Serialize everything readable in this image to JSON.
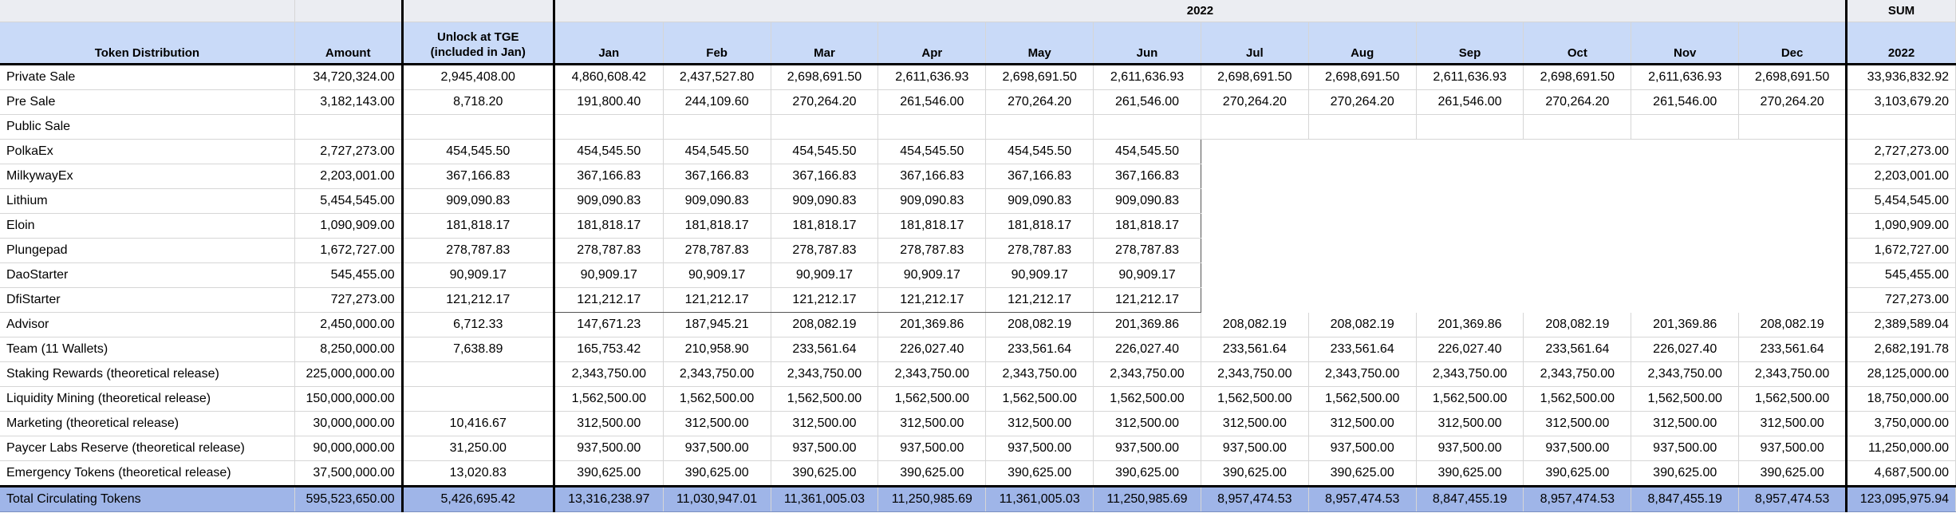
{
  "header": {
    "year_group": "2022",
    "sum_group": "SUM",
    "columns": [
      "Token Distribution",
      "Amount",
      "Unlock at TGE (included in Jan)",
      "Jan",
      "Feb",
      "Mar",
      "Apr",
      "May",
      "Jun",
      "Jul",
      "Aug",
      "Sep",
      "Oct",
      "Nov",
      "Dec",
      "2022"
    ]
  },
  "rows": [
    {
      "label": "Private Sale",
      "amount": "34,720,324.00",
      "tge": "2,945,408.00",
      "months": [
        "4,860,608.42",
        "2,437,527.80",
        "2,698,691.50",
        "2,611,636.93",
        "2,698,691.50",
        "2,611,636.93",
        "2,698,691.50",
        "2,698,691.50",
        "2,611,636.93",
        "2,698,691.50",
        "2,611,636.93",
        "2,698,691.50"
      ],
      "sum": "33,936,832.92"
    },
    {
      "label": "Pre Sale",
      "amount": "3,182,143.00",
      "tge": "8,718.20",
      "months": [
        "191,800.40",
        "244,109.60",
        "270,264.20",
        "261,546.00",
        "270,264.20",
        "261,546.00",
        "270,264.20",
        "270,264.20",
        "261,546.00",
        "270,264.20",
        "261,546.00",
        "270,264.20"
      ],
      "sum": "3,103,679.20"
    },
    {
      "label": "Public Sale",
      "amount": "",
      "tge": "",
      "months": [
        "",
        "",
        "",
        "",
        "",
        "",
        "",
        "",
        "",
        "",
        "",
        ""
      ],
      "sum": ""
    },
    {
      "label": "PolkaEx",
      "amount": "2,727,273.00",
      "tge": "454,545.50",
      "months": [
        "454,545.50",
        "454,545.50",
        "454,545.50",
        "454,545.50",
        "454,545.50",
        "454,545.50",
        "",
        "",
        "",
        "",
        "",
        ""
      ],
      "sum": "2,727,273.00"
    },
    {
      "label": "MilkywayEx",
      "amount": "2,203,001.00",
      "tge": "367,166.83",
      "months": [
        "367,166.83",
        "367,166.83",
        "367,166.83",
        "367,166.83",
        "367,166.83",
        "367,166.83",
        "",
        "",
        "",
        "",
        "",
        ""
      ],
      "sum": "2,203,001.00"
    },
    {
      "label": "Lithium",
      "amount": "5,454,545.00",
      "tge": "909,090.83",
      "months": [
        "909,090.83",
        "909,090.83",
        "909,090.83",
        "909,090.83",
        "909,090.83",
        "909,090.83",
        "",
        "",
        "",
        "",
        "",
        ""
      ],
      "sum": "5,454,545.00"
    },
    {
      "label": "Eloin",
      "amount": "1,090,909.00",
      "tge": "181,818.17",
      "months": [
        "181,818.17",
        "181,818.17",
        "181,818.17",
        "181,818.17",
        "181,818.17",
        "181,818.17",
        "",
        "",
        "",
        "",
        "",
        ""
      ],
      "sum": "1,090,909.00"
    },
    {
      "label": "Plungepad",
      "amount": "1,672,727.00",
      "tge": "278,787.83",
      "months": [
        "278,787.83",
        "278,787.83",
        "278,787.83",
        "278,787.83",
        "278,787.83",
        "278,787.83",
        "",
        "",
        "",
        "",
        "",
        ""
      ],
      "sum": "1,672,727.00"
    },
    {
      "label": "DaoStarter",
      "amount": "545,455.00",
      "tge": "90,909.17",
      "months": [
        "90,909.17",
        "90,909.17",
        "90,909.17",
        "90,909.17",
        "90,909.17",
        "90,909.17",
        "",
        "",
        "",
        "",
        "",
        ""
      ],
      "sum": "545,455.00"
    },
    {
      "label": "DfiStarter",
      "amount": "727,273.00",
      "tge": "121,212.17",
      "months": [
        "121,212.17",
        "121,212.17",
        "121,212.17",
        "121,212.17",
        "121,212.17",
        "121,212.17",
        "",
        "",
        "",
        "",
        "",
        ""
      ],
      "sum": "727,273.00"
    },
    {
      "label": "Advisor",
      "amount": "2,450,000.00",
      "tge": "6,712.33",
      "months": [
        "147,671.23",
        "187,945.21",
        "208,082.19",
        "201,369.86",
        "208,082.19",
        "201,369.86",
        "208,082.19",
        "208,082.19",
        "201,369.86",
        "208,082.19",
        "201,369.86",
        "208,082.19"
      ],
      "sum": "2,389,589.04"
    },
    {
      "label": "Team (11 Wallets)",
      "amount": "8,250,000.00",
      "tge": "7,638.89",
      "months": [
        "165,753.42",
        "210,958.90",
        "233,561.64",
        "226,027.40",
        "233,561.64",
        "226,027.40",
        "233,561.64",
        "233,561.64",
        "226,027.40",
        "233,561.64",
        "226,027.40",
        "233,561.64"
      ],
      "sum": "2,682,191.78"
    },
    {
      "label": "Staking Rewards (theoretical release)",
      "amount": "225,000,000.00",
      "tge": "",
      "months": [
        "2,343,750.00",
        "2,343,750.00",
        "2,343,750.00",
        "2,343,750.00",
        "2,343,750.00",
        "2,343,750.00",
        "2,343,750.00",
        "2,343,750.00",
        "2,343,750.00",
        "2,343,750.00",
        "2,343,750.00",
        "2,343,750.00"
      ],
      "sum": "28,125,000.00"
    },
    {
      "label": "Liquidity Mining (theoretical release)",
      "amount": "150,000,000.00",
      "tge": "",
      "months": [
        "1,562,500.00",
        "1,562,500.00",
        "1,562,500.00",
        "1,562,500.00",
        "1,562,500.00",
        "1,562,500.00",
        "1,562,500.00",
        "1,562,500.00",
        "1,562,500.00",
        "1,562,500.00",
        "1,562,500.00",
        "1,562,500.00"
      ],
      "sum": "18,750,000.00"
    },
    {
      "label": "Marketing (theoretical release)",
      "amount": "30,000,000.00",
      "tge": "10,416.67",
      "months": [
        "312,500.00",
        "312,500.00",
        "312,500.00",
        "312,500.00",
        "312,500.00",
        "312,500.00",
        "312,500.00",
        "312,500.00",
        "312,500.00",
        "312,500.00",
        "312,500.00",
        "312,500.00"
      ],
      "sum": "3,750,000.00"
    },
    {
      "label": "Paycer Labs Reserve (theoretical release)",
      "amount": "90,000,000.00",
      "tge": "31,250.00",
      "months": [
        "937,500.00",
        "937,500.00",
        "937,500.00",
        "937,500.00",
        "937,500.00",
        "937,500.00",
        "937,500.00",
        "937,500.00",
        "937,500.00",
        "937,500.00",
        "937,500.00",
        "937,500.00"
      ],
      "sum": "11,250,000.00"
    },
    {
      "label": "Emergency Tokens (theoretical release)",
      "amount": "37,500,000.00",
      "tge": "13,020.83",
      "months": [
        "390,625.00",
        "390,625.00",
        "390,625.00",
        "390,625.00",
        "390,625.00",
        "390,625.00",
        "390,625.00",
        "390,625.00",
        "390,625.00",
        "390,625.00",
        "390,625.00",
        "390,625.00"
      ],
      "sum": "4,687,500.00"
    }
  ],
  "total": {
    "label": "Total Circulating Tokens",
    "amount": "595,523,650.00",
    "tge": "5,426,695.42",
    "months": [
      "13,316,238.97",
      "11,030,947.01",
      "11,361,005.03",
      "11,250,985.69",
      "11,361,005.03",
      "11,250,985.69",
      "8,957,474.53",
      "8,957,474.53",
      "8,847,455.19",
      "8,957,474.53",
      "8,847,455.19",
      "8,957,474.53"
    ],
    "sum": "123,095,975.94"
  }
}
